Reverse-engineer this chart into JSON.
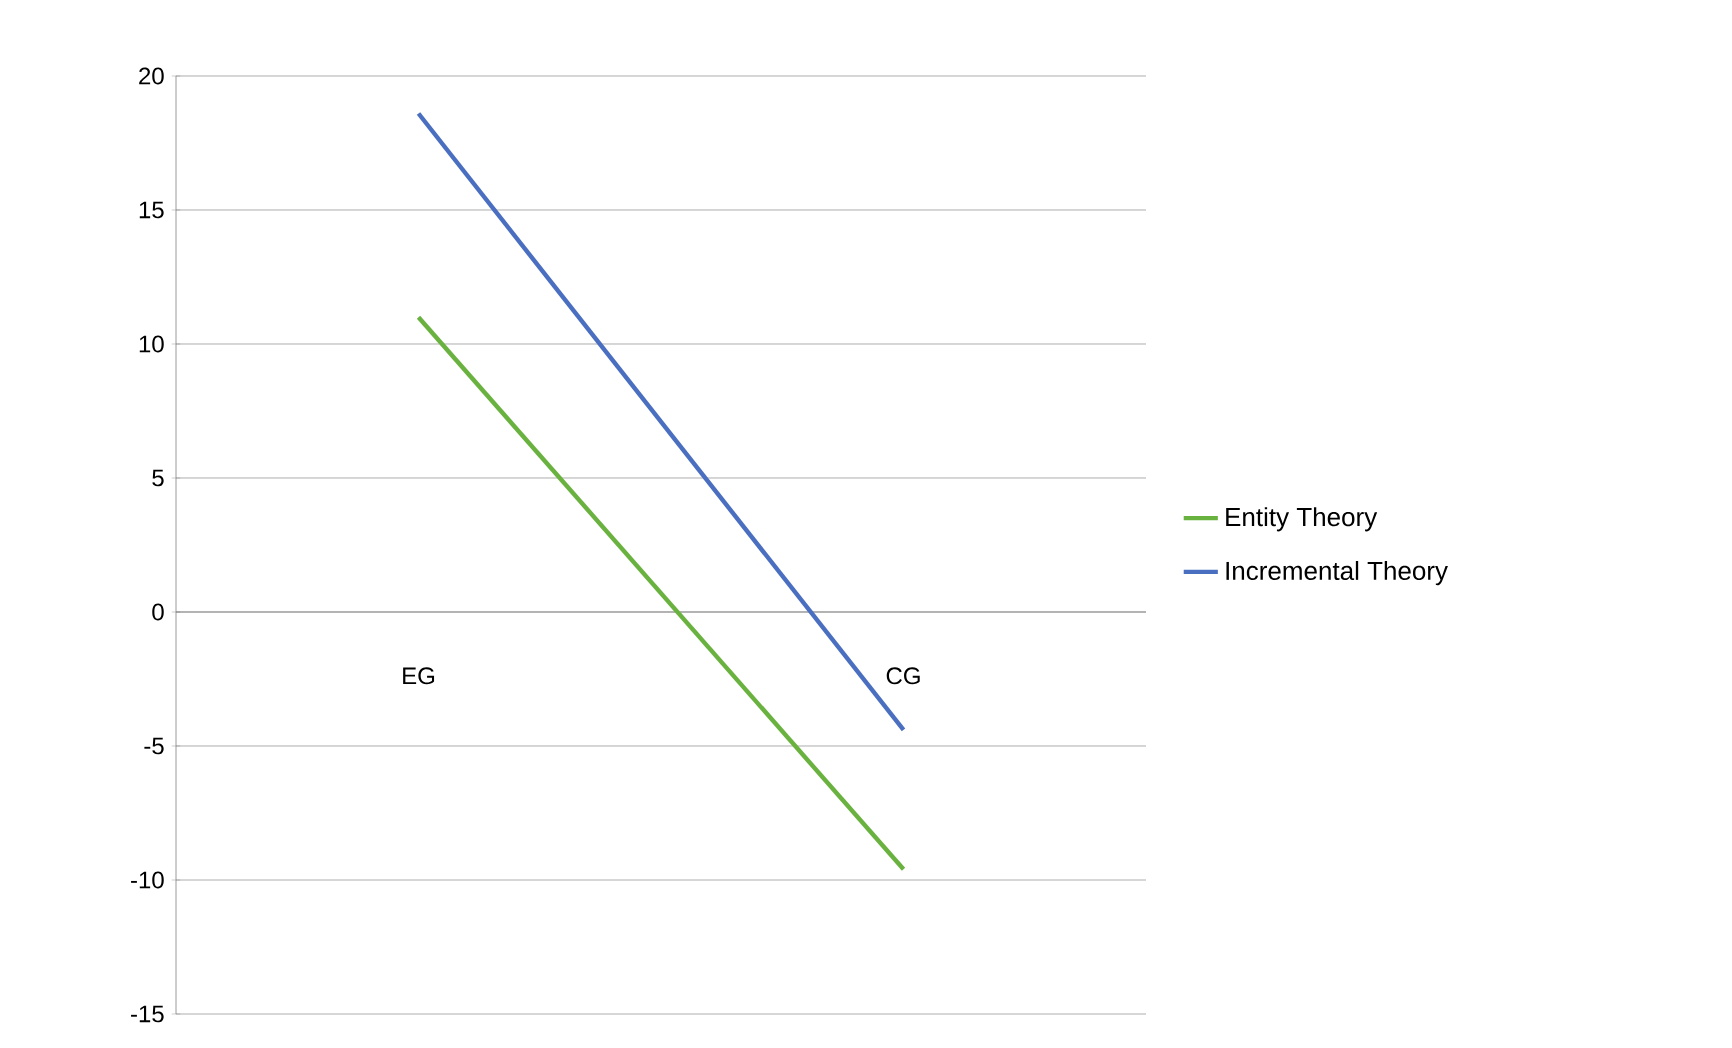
{
  "chart_data": {
    "type": "line",
    "categories": [
      "EG",
      "CG"
    ],
    "series": [
      {
        "name": "Entity Theory",
        "color": "#6ab23f",
        "values": [
          11.0,
          -9.6
        ]
      },
      {
        "name": "Incremental Theory",
        "color": "#4a6fc0",
        "values": [
          18.6,
          -4.4
        ]
      }
    ],
    "ylim": [
      -15,
      20
    ],
    "yticks": [
      -15,
      -10,
      -5,
      0,
      5,
      10,
      15,
      20
    ],
    "grid": "y",
    "legend": "right",
    "marker": "none",
    "line_style": "solid"
  }
}
